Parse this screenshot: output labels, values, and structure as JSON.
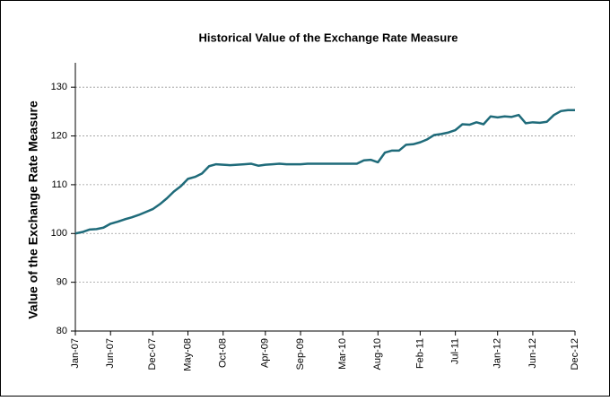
{
  "chart_data": {
    "type": "line",
    "title": "Historical Value of the Exchange Rate Measure",
    "y_label": "Value of the Exchange Rate Measure",
    "categories": [
      "Jan-07",
      null,
      null,
      null,
      null,
      "Jun-07",
      null,
      null,
      null,
      null,
      null,
      "Dec-07",
      null,
      null,
      null,
      null,
      "May-08",
      null,
      null,
      null,
      null,
      "Oct-08",
      null,
      null,
      null,
      null,
      null,
      "Apr-09",
      null,
      null,
      null,
      null,
      "Sep-09",
      null,
      null,
      null,
      null,
      null,
      "Mar-10",
      null,
      null,
      null,
      null,
      "Aug-10",
      null,
      null,
      null,
      null,
      null,
      "Feb-11",
      null,
      null,
      null,
      null,
      "Jul-11",
      null,
      null,
      null,
      null,
      null,
      "Jan-12",
      null,
      null,
      null,
      null,
      "Jun-12",
      null,
      null,
      null,
      null,
      null,
      "Dec-12"
    ],
    "series": [
      {
        "name": "Exchange Rate Measure",
        "color": "#1f6b7a",
        "values": [
          100.0,
          100.3,
          100.8,
          100.9,
          101.2,
          102.0,
          102.4,
          102.9,
          103.3,
          103.8,
          104.4,
          105.0,
          106.0,
          107.2,
          108.6,
          109.7,
          111.2,
          111.6,
          112.3,
          113.8,
          114.2,
          114.1,
          114.0,
          114.1,
          114.2,
          114.3,
          113.9,
          114.1,
          114.2,
          114.3,
          114.2,
          114.2,
          114.2,
          114.3,
          114.3,
          114.3,
          114.3,
          114.3,
          114.3,
          114.3,
          114.3,
          115.0,
          115.1,
          114.6,
          116.6,
          117.0,
          117.0,
          118.2,
          118.3,
          118.7,
          119.3,
          120.2,
          120.4,
          120.7,
          121.2,
          122.4,
          122.3,
          122.8,
          122.4,
          124.0,
          123.8,
          124.0,
          123.9,
          124.3,
          122.6,
          122.8,
          122.7,
          122.9,
          124.3,
          125.1,
          125.3,
          125.3
        ]
      }
    ],
    "ylim": [
      80,
      135
    ],
    "yticks": [
      80,
      90,
      100,
      110,
      120,
      130
    ],
    "grid": true
  }
}
